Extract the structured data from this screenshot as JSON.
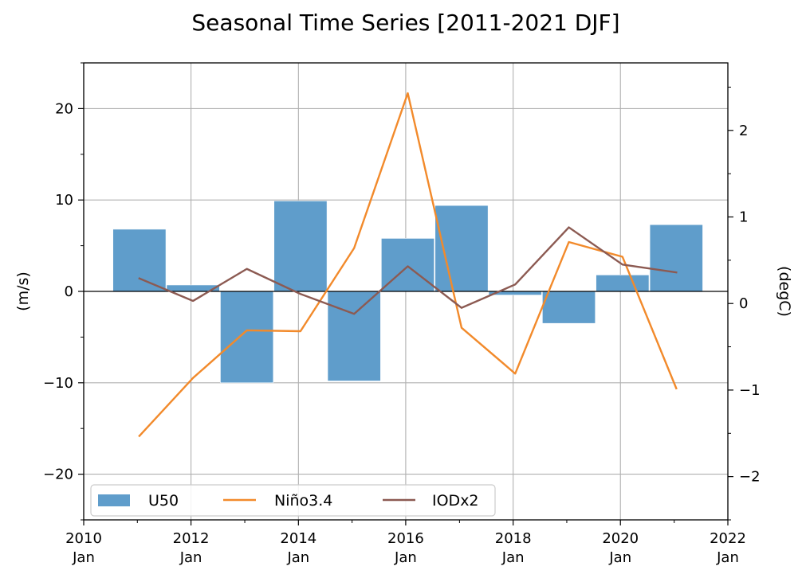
{
  "chart_data": {
    "type": "bar+line",
    "title": "Seasonal Time Series [2011-2021 DJF]",
    "x_axis": {
      "kind": "date",
      "range": [
        "2010-01-01",
        "2022-01-01"
      ],
      "ticks": [
        {
          "date": "2010-01-01",
          "year": "2010",
          "month": "Jan"
        },
        {
          "date": "2012-01-01",
          "year": "2012",
          "month": "Jan"
        },
        {
          "date": "2014-01-01",
          "year": "2014",
          "month": "Jan"
        },
        {
          "date": "2016-01-01",
          "year": "2016",
          "month": "Jan"
        },
        {
          "date": "2018-01-01",
          "year": "2018",
          "month": "Jan"
        },
        {
          "date": "2020-01-01",
          "year": "2020",
          "month": "Jan"
        },
        {
          "date": "2022-01-01",
          "year": "2022",
          "month": "Jan"
        }
      ]
    },
    "y_left": {
      "label": "(m/s)",
      "ylim": [
        -25,
        25
      ],
      "ticks": [
        -20,
        -10,
        0,
        10,
        20
      ],
      "tick_labels": [
        "−20",
        "−10",
        "0",
        "10",
        "20"
      ]
    },
    "y_right": {
      "label": "(degC)",
      "ylim": [
        -2.5,
        2.78
      ],
      "ticks": [
        -2,
        -1,
        0,
        1,
        2
      ],
      "tick_labels": [
        "−2",
        "−1",
        "0",
        "1",
        "2"
      ]
    },
    "grid": true,
    "zero_line": true,
    "legend": {
      "placement": "lower-left",
      "columns": 3
    },
    "bars": {
      "name": "U50",
      "axis": "left",
      "color": "#5f9dcb",
      "bar_width_days": 360,
      "points": [
        {
          "date": "2011-01-15",
          "value": 6.8
        },
        {
          "date": "2012-01-15",
          "value": 0.7
        },
        {
          "date": "2013-01-15",
          "value": -10.0
        },
        {
          "date": "2014-01-15",
          "value": 9.9
        },
        {
          "date": "2015-01-15",
          "value": -9.8
        },
        {
          "date": "2016-01-15",
          "value": 5.8
        },
        {
          "date": "2017-01-15",
          "value": 9.4
        },
        {
          "date": "2018-01-15",
          "value": -0.4
        },
        {
          "date": "2019-01-15",
          "value": -3.5
        },
        {
          "date": "2020-01-15",
          "value": 1.8
        },
        {
          "date": "2021-01-15",
          "value": 7.3
        }
      ]
    },
    "series": [
      {
        "name": "Niño3.4",
        "axis": "right",
        "color": "#f28a2b",
        "points": [
          {
            "date": "2011-01-15",
            "value": -1.53
          },
          {
            "date": "2012-01-15",
            "value": -0.86
          },
          {
            "date": "2013-01-15",
            "value": -0.31
          },
          {
            "date": "2014-01-15",
            "value": -0.32
          },
          {
            "date": "2015-01-15",
            "value": 0.64
          },
          {
            "date": "2016-01-15",
            "value": 2.43
          },
          {
            "date": "2017-01-15",
            "value": -0.28
          },
          {
            "date": "2018-01-15",
            "value": -0.81
          },
          {
            "date": "2019-01-15",
            "value": 0.71
          },
          {
            "date": "2020-01-15",
            "value": 0.54
          },
          {
            "date": "2021-01-15",
            "value": -0.98
          }
        ]
      },
      {
        "name": "IODx2",
        "axis": "right",
        "color": "#8c5a52",
        "points": [
          {
            "date": "2011-01-15",
            "value": 0.29
          },
          {
            "date": "2012-01-15",
            "value": 0.03
          },
          {
            "date": "2013-01-15",
            "value": 0.4
          },
          {
            "date": "2014-01-15",
            "value": 0.11
          },
          {
            "date": "2015-01-15",
            "value": -0.12
          },
          {
            "date": "2016-01-15",
            "value": 0.43
          },
          {
            "date": "2017-01-15",
            "value": -0.05
          },
          {
            "date": "2018-01-15",
            "value": 0.22
          },
          {
            "date": "2019-01-15",
            "value": 0.88
          },
          {
            "date": "2020-01-15",
            "value": 0.45
          },
          {
            "date": "2021-01-15",
            "value": 0.36
          }
        ]
      }
    ]
  }
}
